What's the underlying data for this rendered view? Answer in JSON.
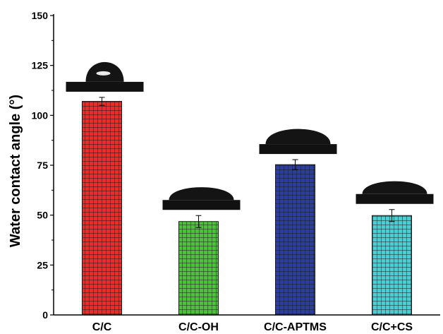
{
  "chart_data": {
    "type": "bar",
    "title": "",
    "xlabel": "",
    "ylabel": "Water contact angle (°)",
    "ylim": [
      0,
      150
    ],
    "yticks": [
      0,
      25,
      50,
      75,
      100,
      125,
      150
    ],
    "categories": [
      "C/C",
      "C/C-OH",
      "C/C-APTMS",
      "C/C+CS"
    ],
    "values": [
      107,
      46.8,
      75.3,
      49.8
    ],
    "errors": [
      2,
      3,
      2.5,
      3
    ],
    "colors": [
      "#ee2a2a",
      "#4cc23a",
      "#2c3d9f",
      "#47cfd2"
    ],
    "pattern": "grid",
    "grid": false,
    "legend": "none",
    "insets": [
      "water-droplet-photo",
      "water-droplet-photo",
      "water-droplet-photo",
      "water-droplet-photo"
    ]
  }
}
